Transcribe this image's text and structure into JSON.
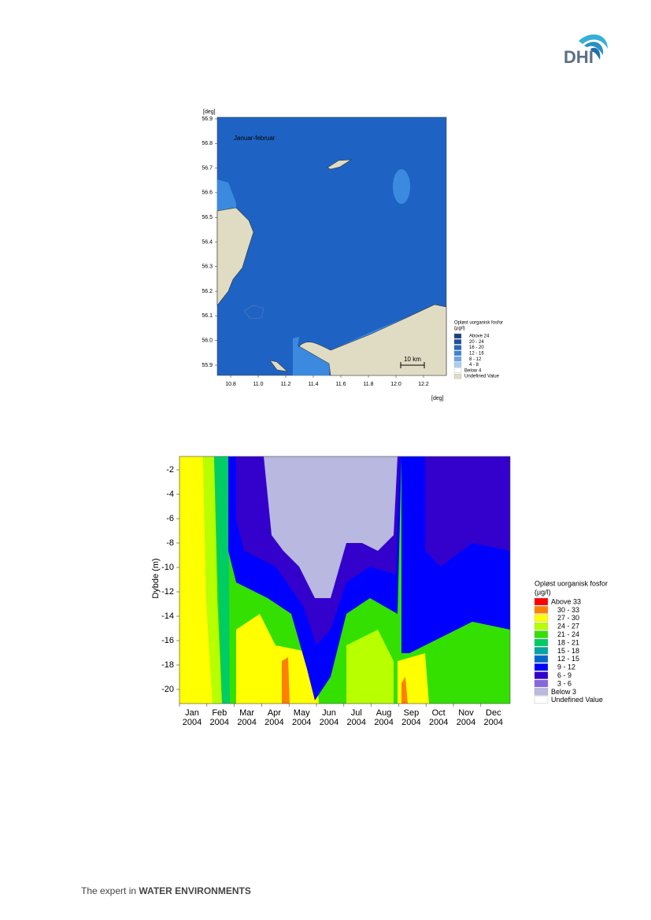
{
  "header": {
    "logo": "DHI"
  },
  "map_figure": {
    "y_unit": "[deg]",
    "x_unit": "[deg]",
    "yticks": [
      "56.9",
      "56.8",
      "56.7",
      "56.6",
      "56.5",
      "56.4",
      "56.3",
      "56.2",
      "56.1",
      "56.0",
      "55.9"
    ],
    "xticks": [
      "10.8",
      "11.0",
      "11.2",
      "11.4",
      "11.6",
      "11.8",
      "12.0",
      "12.2"
    ],
    "annotation": "Januar-februar",
    "scale_bar": "10 km",
    "legend": {
      "title": "Opløst uorganisk fosfor",
      "unit": "(µg/l)",
      "items": [
        {
          "label": "Above 24",
          "color": "#1c3f80"
        },
        {
          "label": "20 - 24",
          "color": "#1e4fa0"
        },
        {
          "label": "16 - 20",
          "color": "#2466c0"
        },
        {
          "label": "12 - 16",
          "color": "#3c82d8"
        },
        {
          "label": "8 - 12",
          "color": "#6aa6e8"
        },
        {
          "label": "4 - 8",
          "color": "#a8cdf4"
        },
        {
          "label": "Below 4",
          "color": "#ffffff"
        },
        {
          "label": "Undefined Value",
          "color": "#e0dcc4"
        }
      ]
    }
  },
  "profile_figure": {
    "y_label": "Dybde (m)",
    "yticks": [
      -2,
      -4,
      -6,
      -8,
      -10,
      -12,
      -14,
      -16,
      -18,
      -20
    ],
    "xticks": [
      {
        "month": "Jan",
        "year": "2004"
      },
      {
        "month": "Feb",
        "year": "2004"
      },
      {
        "month": "Mar",
        "year": "2004"
      },
      {
        "month": "Apr",
        "year": "2004"
      },
      {
        "month": "May",
        "year": "2004"
      },
      {
        "month": "Jun",
        "year": "2004"
      },
      {
        "month": "Jul",
        "year": "2004"
      },
      {
        "month": "Aug",
        "year": "2004"
      },
      {
        "month": "Sep",
        "year": "2004"
      },
      {
        "month": "Oct",
        "year": "2004"
      },
      {
        "month": "Nov",
        "year": "2004"
      },
      {
        "month": "Dec",
        "year": "2004"
      }
    ],
    "legend": {
      "title": "Opløst uorganisk fosfor",
      "unit": "(µg/l)",
      "items": [
        {
          "label": "Above 33",
          "color": "#ff0000"
        },
        {
          "label": "30 - 33",
          "color": "#ff8000"
        },
        {
          "label": "27 - 30",
          "color": "#ffff00"
        },
        {
          "label": "24 - 27",
          "color": "#b8ff00"
        },
        {
          "label": "21 - 24",
          "color": "#33e000"
        },
        {
          "label": "18 - 21",
          "color": "#00cc66"
        },
        {
          "label": "15 - 18",
          "color": "#00a6a0"
        },
        {
          "label": "12 - 15",
          "color": "#0066cc"
        },
        {
          "label": "9 - 12",
          "color": "#0000ff"
        },
        {
          "label": "6 - 9",
          "color": "#3300cc"
        },
        {
          "label": "3 - 6",
          "color": "#8866dd"
        },
        {
          "label": "Below 3",
          "color": "#b8b8e0"
        },
        {
          "label": "Undefined Value",
          "color": "#ffffff"
        }
      ]
    }
  },
  "footer": {
    "text": "The expert in",
    "emphasis": "WATER ENVIRONMENTS"
  }
}
